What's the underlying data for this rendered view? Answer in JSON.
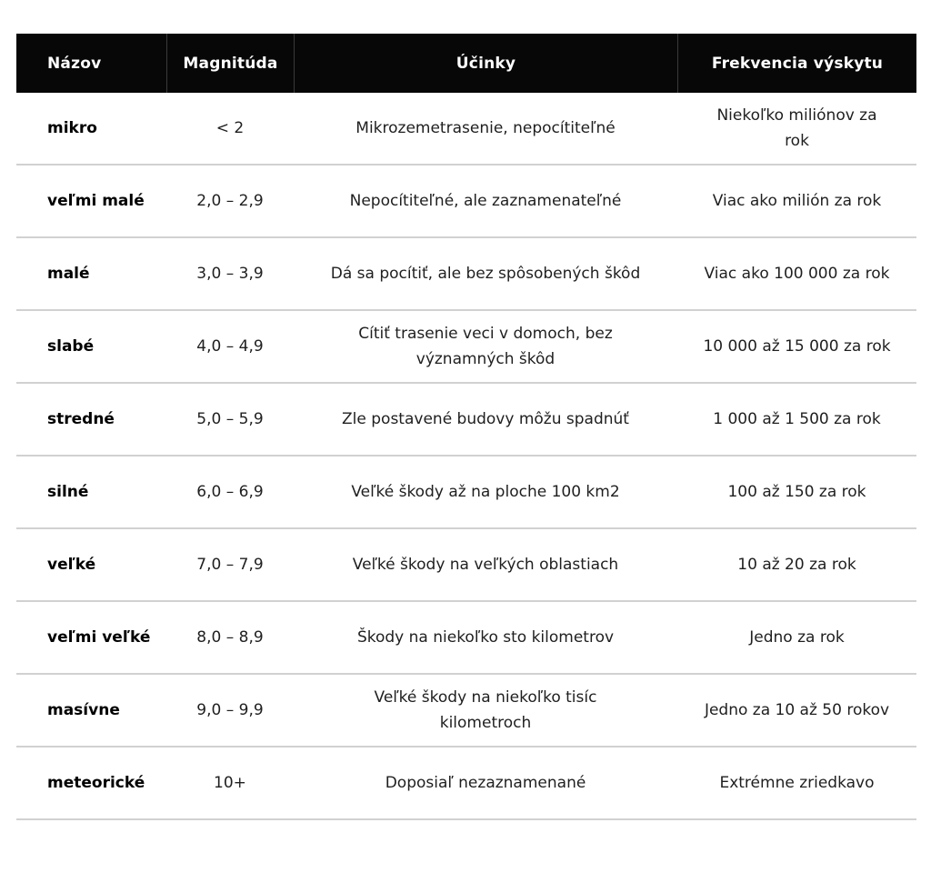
{
  "colors": {
    "page_bg": "#ffffff",
    "header_bg": "#070707",
    "header_text": "#ffffff",
    "header_divider": "#3a3a3a",
    "row_divider": "#d1d1d1",
    "name_text": "#000000",
    "body_text": "#1f1f1f"
  },
  "table": {
    "columns": [
      {
        "key": "name",
        "label": "Názov"
      },
      {
        "key": "magnitude",
        "label": "Magnitúda"
      },
      {
        "key": "effects",
        "label": "Účinky"
      },
      {
        "key": "frequency",
        "label": "Frekvencia výskytu"
      }
    ],
    "rows": [
      {
        "name": "mikro",
        "magnitude": "< 2",
        "effects": "Mikrozemetrasenie, nepocítiteľné",
        "frequency": "Niekoľko miliónov za\nrok"
      },
      {
        "name": "veľmi malé",
        "magnitude": "2,0 – 2,9",
        "effects": "Nepocítiteľné, ale zaznamenateľné",
        "frequency": "Viac ako milión za rok"
      },
      {
        "name": "malé",
        "magnitude": "3,0 – 3,9",
        "effects": "Dá sa pocítiť, ale bez spôsobených škôd",
        "frequency": "Viac ako 100 000 za rok"
      },
      {
        "name": "slabé",
        "magnitude": "4,0 – 4,9",
        "effects": "Cítiť trasenie veci v domoch, bez\nvýznamných škôd",
        "frequency": "10 000 až 15 000 za rok"
      },
      {
        "name": "stredné",
        "magnitude": "5,0 – 5,9",
        "effects": "Zle postavené budovy môžu spadnúť",
        "frequency": "1 000 až 1 500 za rok"
      },
      {
        "name": "silné",
        "magnitude": "6,0 – 6,9",
        "effects": "Veľké škody až na ploche 100 km2",
        "frequency": "100 až 150 za rok"
      },
      {
        "name": "veľké",
        "magnitude": "7,0 – 7,9",
        "effects": "Veľké škody na veľkých oblastiach",
        "frequency": "10 až 20 za rok"
      },
      {
        "name": "veľmi veľké",
        "magnitude": "8,0 – 8,9",
        "effects": "Škody na niekoľko sto kilometrov",
        "frequency": "Jedno za rok"
      },
      {
        "name": "masívne",
        "magnitude": "9,0 – 9,9",
        "effects": "Veľké škody na niekoľko tisíc\nkilometroch",
        "frequency": "Jedno za 10 až 50 rokov"
      },
      {
        "name": "meteorické",
        "magnitude": "10+",
        "effects": "Doposiaľ nezaznamenané",
        "frequency": "Extrémne zriedkavo"
      }
    ]
  }
}
